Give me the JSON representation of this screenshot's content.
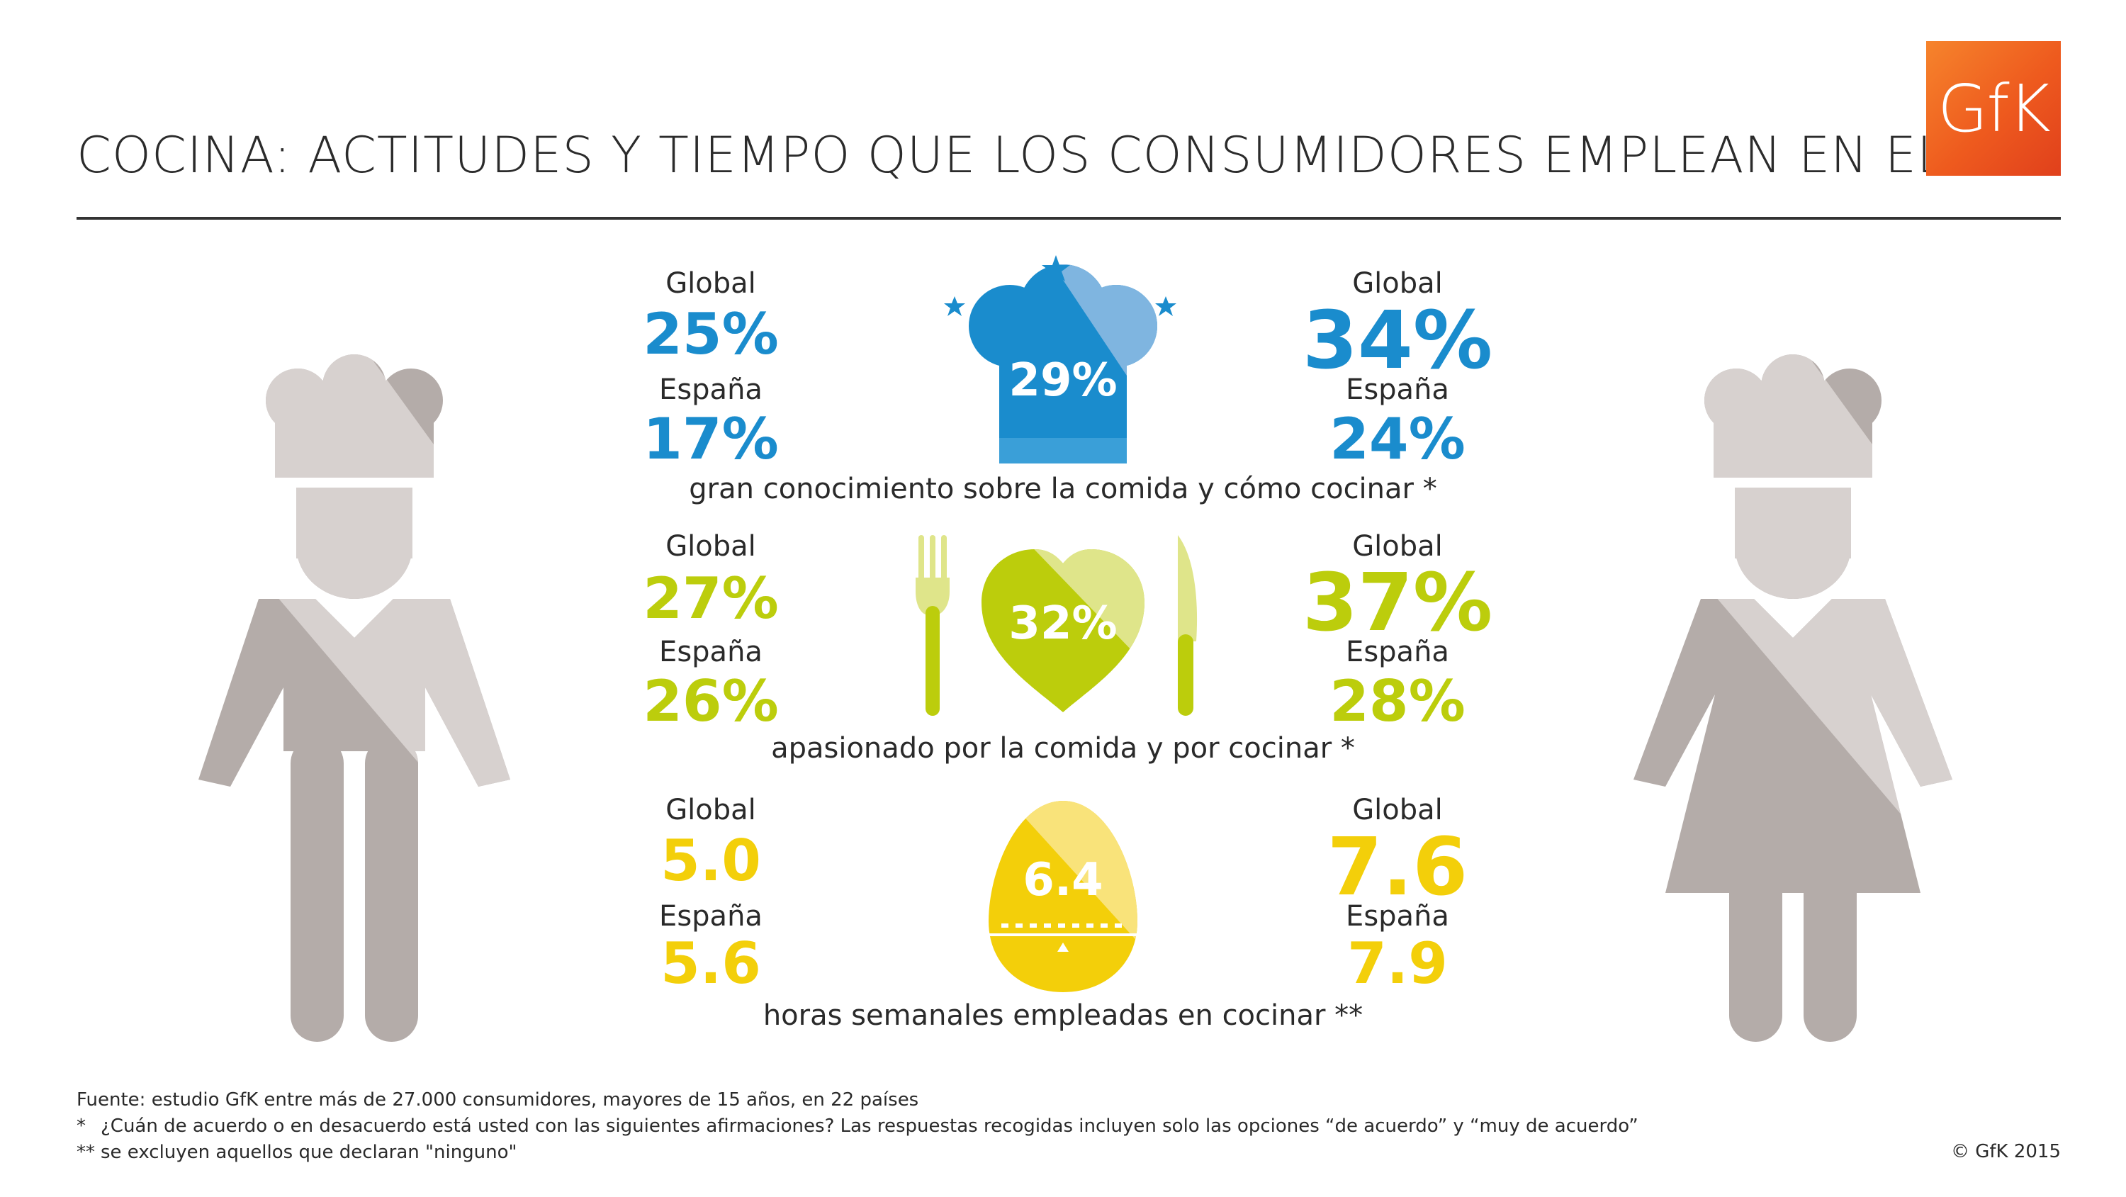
{
  "header": {
    "title": "COCINA: ACTITUDES Y TIEMPO QUE LOS CONSUMIDORES EMPLEAN EN ELLA",
    "logo_text": "GfK"
  },
  "labels": {
    "global": "Global",
    "spain": "España"
  },
  "rows": [
    {
      "icon": "chef-hat-icon",
      "color": "#1a8ccd",
      "left": {
        "global": "25%",
        "spain": "17%"
      },
      "center": "29%",
      "right": {
        "global": "34%",
        "spain": "24%"
      },
      "caption": "gran conocimiento sobre la comida y cómo cocinar *"
    },
    {
      "icon": "heart-fork-knife-icon",
      "color": "#bccd0c",
      "left": {
        "global": "27%",
        "spain": "26%"
      },
      "center": "32%",
      "right": {
        "global": "37%",
        "spain": "28%"
      },
      "caption": "apasionado por la comida y por cocinar *"
    },
    {
      "icon": "egg-timer-icon",
      "color": "#f3cf0a",
      "left": {
        "global": "5.0",
        "spain": "5.6"
      },
      "center": "6.4",
      "right": {
        "global": "7.6",
        "spain": "7.9"
      },
      "caption": "horas semanales empleadas en cocinar **"
    }
  ],
  "figures": {
    "left": "male-chef-icon",
    "right": "female-chef-icon"
  },
  "footer": {
    "source": "Fuente: estudio GfK entre más de 27.000 consumidores, mayores de 15 años, en 22 países",
    "note1_mark": "*",
    "note1": "¿Cuán de acuerdo o en desacuerdo está usted con las siguientes afirmaciones? Las respuestas recogidas incluyen solo las opciones “de acuerdo” y “muy de acuerdo”",
    "note2_mark": "**",
    "note2": "se excluyen aquellos que declaran \"ninguno\"",
    "copyright": "© GfK 2015"
  }
}
